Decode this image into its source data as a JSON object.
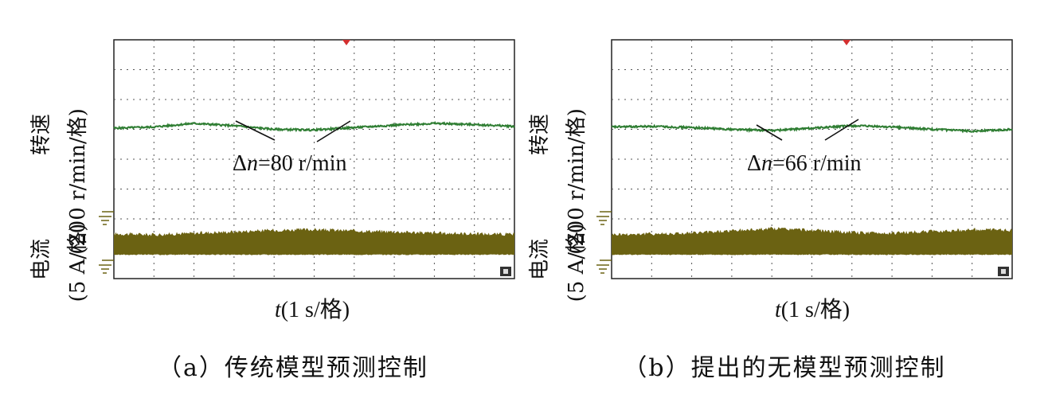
{
  "chart_data": [
    {
      "type": "line",
      "panel": "a",
      "caption": "（a）传统模型预测控制",
      "xlabel": "t(1 s/格)",
      "ylabel_speed": "转速 (200 r/min/格)",
      "ylabel_current": "电流 (5 A/格)",
      "annotation": "Δn=80 r/min",
      "grid_divisions": {
        "x": 10,
        "y": 8
      },
      "series": [
        {
          "name": "speed",
          "color": "#2e7d32",
          "x": [
            0,
            1,
            2,
            3,
            4,
            5,
            6,
            7,
            8,
            9,
            10
          ],
          "values": [
            5.04,
            5.08,
            5.2,
            5.12,
            5.0,
            4.98,
            5.06,
            5.14,
            5.2,
            5.16,
            5.1
          ]
        },
        {
          "name": "current",
          "color": "#6b6212",
          "x": [
            0,
            1,
            2,
            3,
            4,
            5,
            6,
            7,
            8,
            9,
            10
          ],
          "band_top": [
            1.48,
            1.45,
            1.5,
            1.55,
            1.6,
            1.62,
            1.58,
            1.55,
            1.5,
            1.48,
            1.46
          ],
          "band_bottom": 0.8
        }
      ]
    },
    {
      "type": "line",
      "panel": "b",
      "caption": "（b）提出的无模型预测控制",
      "xlabel": "t(1 s/格)",
      "ylabel_speed": "转速 (200 r/min/格)",
      "ylabel_current": "电流 (5 A/格)",
      "annotation": "Δn=66 r/min",
      "grid_divisions": {
        "x": 10,
        "y": 8
      },
      "series": [
        {
          "name": "speed",
          "color": "#2e7d32",
          "x": [
            0,
            1,
            2,
            3,
            4,
            5,
            6,
            7,
            8,
            9,
            10
          ],
          "values": [
            5.08,
            5.1,
            5.06,
            5.0,
            4.96,
            5.04,
            5.12,
            5.08,
            5.0,
            4.94,
            5.0
          ]
        },
        {
          "name": "current",
          "color": "#6b6212",
          "x": [
            0,
            1,
            2,
            3,
            4,
            5,
            6,
            7,
            8,
            9,
            10
          ],
          "band_top": [
            1.46,
            1.48,
            1.5,
            1.58,
            1.66,
            1.6,
            1.52,
            1.5,
            1.56,
            1.62,
            1.6
          ],
          "band_bottom": 0.8
        }
      ]
    }
  ],
  "labels": {
    "xlabel_t": "t",
    "xlabel_rest": "(1 s/格)",
    "speed_main": "转速",
    "speed_unit": "(200 r/min/格)",
    "current_main": "电流",
    "current_unit": "(5 A/格)",
    "delta_a_sym": "Δ",
    "delta_a_var": "n",
    "delta_a_val": "=80 r/min",
    "delta_b_sym": "Δ",
    "delta_b_var": "n",
    "delta_b_val": "=66 r/min",
    "caption_a": "（a）传统模型预测控制",
    "caption_b": "（b）提出的无模型预测控制"
  },
  "colors": {
    "speed": "#2e7d32",
    "current": "#6b6212",
    "trigger": "#d32f2f",
    "grid": "#555555"
  }
}
